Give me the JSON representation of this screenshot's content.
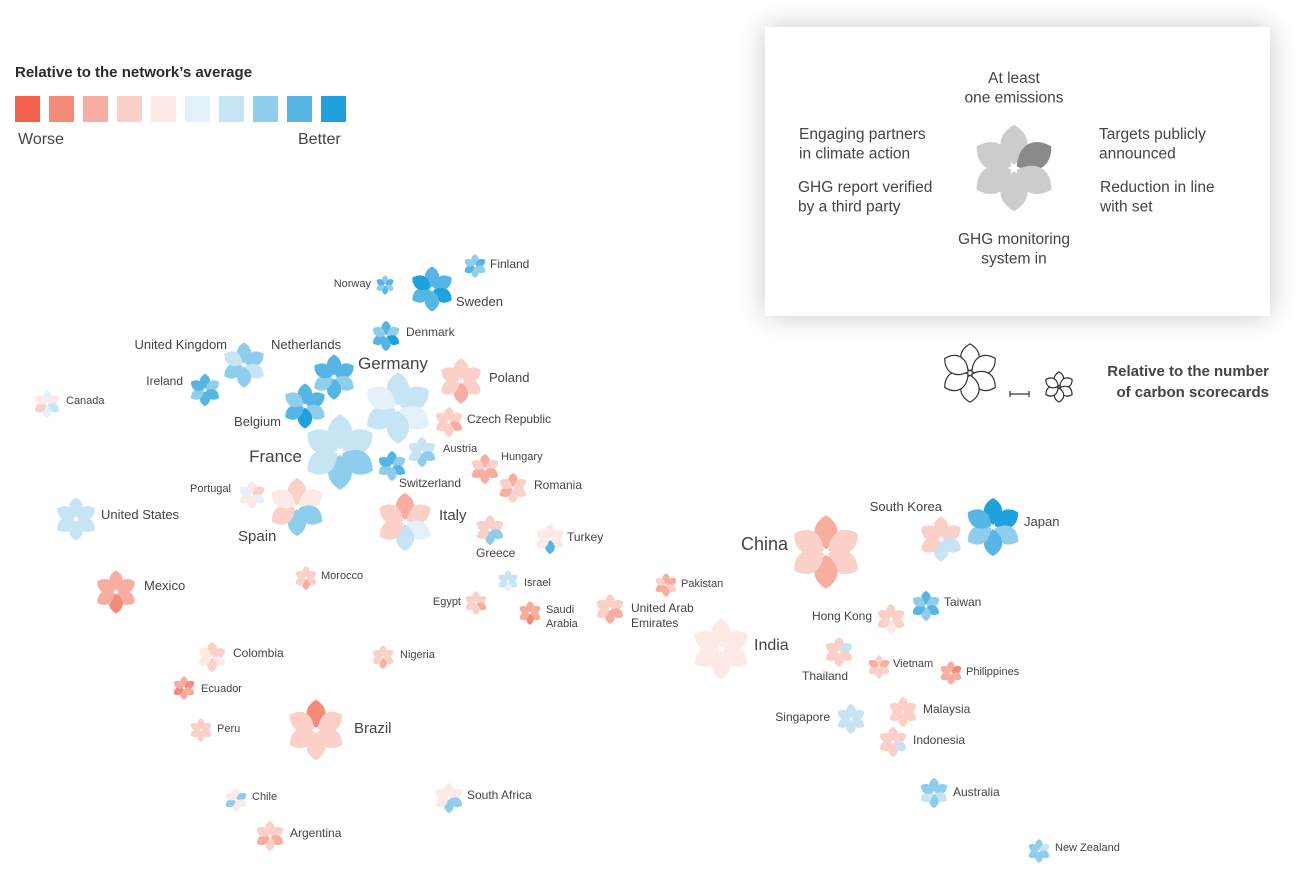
{
  "legend": {
    "title": "Relative to the network’s average",
    "worse_label": "Worse",
    "better_label": "Better",
    "scale_colors": [
      "#f2604c",
      "#f48a78",
      "#f7ada0",
      "#fbd0c8",
      "#fde9e5",
      "#e3f1fa",
      "#c6e4f4",
      "#8fcdec",
      "#55b6e6",
      "#1ea2de"
    ]
  },
  "key": {
    "petals": [
      "At least one emissions target",
      "Targets publicly announced",
      "Reduction in line with set targets",
      "GHG monitoring system in place",
      "GHG report verified by a third party",
      "Engaging partners in climate action"
    ],
    "size_label": "Relative to the number of carbon scorecards"
  },
  "countries": [
    {
      "name": "Norway",
      "petals": [
        7,
        8,
        7,
        8,
        7,
        8
      ]
    },
    {
      "name": "Finland",
      "petals": [
        7,
        8,
        7,
        7,
        8,
        7
      ]
    },
    {
      "name": "Sweden",
      "petals": [
        8,
        8,
        9,
        8,
        8,
        9
      ]
    },
    {
      "name": "Denmark",
      "petals": [
        8,
        7,
        9,
        8,
        8,
        7
      ]
    },
    {
      "name": "United Kingdom",
      "petals": [
        7,
        7,
        6,
        7,
        7,
        6
      ]
    },
    {
      "name": "Netherlands",
      "petals": [
        8,
        8,
        7,
        8,
        7,
        8
      ]
    },
    {
      "name": "Ireland",
      "petals": [
        8,
        7,
        8,
        8,
        7,
        8
      ]
    },
    {
      "name": "Canada",
      "petals": [
        5,
        4,
        6,
        5,
        3,
        4
      ]
    },
    {
      "name": "Belgium",
      "petals": [
        8,
        8,
        7,
        9,
        8,
        7
      ]
    },
    {
      "name": "Germany",
      "petals": [
        6,
        6,
        5,
        6,
        6,
        5
      ]
    },
    {
      "name": "Poland",
      "petals": [
        3,
        3,
        3,
        2,
        3,
        3
      ]
    },
    {
      "name": "Czech Republic",
      "petals": [
        3,
        3,
        2,
        3,
        3,
        3
      ]
    },
    {
      "name": "France",
      "petals": [
        6,
        6,
        7,
        7,
        6,
        6
      ]
    },
    {
      "name": "Austria",
      "petals": [
        6,
        6,
        7,
        7,
        6,
        6
      ]
    },
    {
      "name": "Hungary",
      "petals": [
        2,
        3,
        2,
        2,
        2,
        3
      ]
    },
    {
      "name": "Switzerland",
      "petals": [
        8,
        7,
        8,
        7,
        7,
        8
      ]
    },
    {
      "name": "Romania",
      "petals": [
        2,
        3,
        3,
        3,
        2,
        3
      ]
    },
    {
      "name": "Portugal",
      "petals": [
        4,
        3,
        5,
        4,
        4,
        5
      ]
    },
    {
      "name": "Spain",
      "petals": [
        3,
        4,
        7,
        7,
        3,
        4
      ]
    },
    {
      "name": "Italy",
      "petals": [
        2,
        3,
        5,
        6,
        3,
        3
      ]
    },
    {
      "name": "United States",
      "petals": [
        6,
        6,
        6,
        6,
        6,
        6
      ]
    },
    {
      "name": "Greece",
      "petals": [
        3,
        3,
        7,
        7,
        3,
        3
      ]
    },
    {
      "name": "Turkey",
      "petals": [
        4,
        4,
        4,
        8,
        4,
        4
      ]
    },
    {
      "name": "Mexico",
      "petals": [
        2,
        2,
        2,
        1,
        2,
        2
      ]
    },
    {
      "name": "Morocco",
      "petals": [
        3,
        3,
        3,
        2,
        3,
        3
      ]
    },
    {
      "name": "Israel",
      "petals": [
        6,
        6,
        6,
        5,
        6,
        6
      ]
    },
    {
      "name": "Egypt",
      "petals": [
        3,
        3,
        2,
        3,
        3,
        3
      ]
    },
    {
      "name": "Saudi Arabia",
      "petals": [
        2,
        2,
        2,
        1,
        2,
        2
      ]
    },
    {
      "name": "United Arab Emirates",
      "petals": [
        3,
        3,
        2,
        2,
        3,
        3
      ]
    },
    {
      "name": "Pakistan",
      "petals": [
        2,
        2,
        3,
        2,
        2,
        3
      ]
    },
    {
      "name": "China",
      "petals": [
        2,
        3,
        3,
        2,
        3,
        3
      ]
    },
    {
      "name": "South Korea",
      "petals": [
        3,
        3,
        6,
        6,
        3,
        3
      ]
    },
    {
      "name": "Japan",
      "petals": [
        9,
        9,
        7,
        8,
        7,
        8
      ]
    },
    {
      "name": "Hong Kong",
      "petals": [
        3,
        3,
        3,
        4,
        3,
        3
      ]
    },
    {
      "name": "Taiwan",
      "petals": [
        8,
        7,
        8,
        7,
        8,
        7
      ]
    },
    {
      "name": "India",
      "petals": [
        4,
        4,
        4,
        4,
        4,
        4
      ]
    },
    {
      "name": "Thailand",
      "petals": [
        3,
        6,
        3,
        3,
        3,
        3
      ]
    },
    {
      "name": "Vietnam",
      "petals": [
        3,
        2,
        3,
        3,
        3,
        2
      ]
    },
    {
      "name": "Philippines",
      "petals": [
        2,
        1,
        2,
        2,
        2,
        2
      ]
    },
    {
      "name": "Colombia",
      "petals": [
        3,
        3,
        4,
        3,
        4,
        4
      ]
    },
    {
      "name": "Nigeria",
      "petals": [
        3,
        3,
        3,
        2,
        3,
        3
      ]
    },
    {
      "name": "Ecuador",
      "petals": [
        2,
        1,
        2,
        2,
        1,
        2
      ]
    },
    {
      "name": "Peru",
      "petals": [
        3,
        3,
        3,
        3,
        3,
        3
      ]
    },
    {
      "name": "Brazil",
      "petals": [
        1,
        3,
        3,
        3,
        3,
        3
      ]
    },
    {
      "name": "Singapore",
      "petals": [
        6,
        6,
        6,
        6,
        6,
        6
      ]
    },
    {
      "name": "Malaysia",
      "petals": [
        3,
        3,
        3,
        3,
        3,
        3
      ]
    },
    {
      "name": "Indonesia",
      "petals": [
        3,
        3,
        6,
        3,
        3,
        3
      ]
    },
    {
      "name": "Chile",
      "petals": [
        4,
        7,
        4,
        4,
        7,
        4
      ]
    },
    {
      "name": "South Africa",
      "petals": [
        4,
        4,
        7,
        7,
        4,
        4
      ]
    },
    {
      "name": "Argentina",
      "petals": [
        3,
        3,
        2,
        3,
        2,
        3
      ]
    },
    {
      "name": "Australia",
      "petals": [
        7,
        7,
        6,
        7,
        6,
        7
      ]
    },
    {
      "name": "New Zealand",
      "petals": [
        7,
        6,
        7,
        7,
        7,
        7
      ]
    }
  ]
}
